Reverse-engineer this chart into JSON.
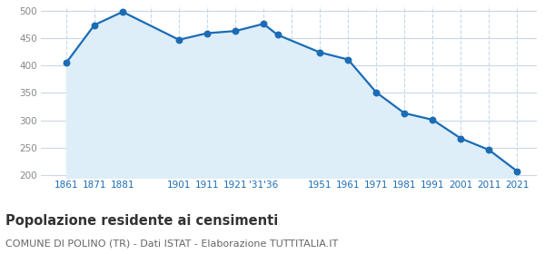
{
  "years": [
    1861,
    1871,
    1881,
    1901,
    1911,
    1921,
    1931,
    1936,
    1951,
    1961,
    1971,
    1981,
    1991,
    2001,
    2011,
    2021
  ],
  "population": [
    405,
    474,
    498,
    447,
    459,
    463,
    476,
    456,
    424,
    411,
    351,
    313,
    301,
    267,
    246,
    207
  ],
  "xtick_positions": [
    1861,
    1871,
    1881,
    1901,
    1911,
    1921,
    1931,
    1951,
    1961,
    1971,
    1981,
    1991,
    2001,
    2011,
    2021
  ],
  "xtick_labels": [
    "1861",
    "1871",
    "1881",
    "1901",
    "1911",
    "1921",
    "'31'36",
    "1951",
    "1961",
    "1971",
    "1981",
    "1991",
    "2001",
    "2011",
    "2021"
  ],
  "vgrid_positions": [
    1861,
    1871,
    1881,
    1891,
    1901,
    1911,
    1921,
    1931,
    1941,
    1951,
    1961,
    1971,
    1981,
    1991,
    2001,
    2011,
    2021
  ],
  "line_color": "#1b6cb5",
  "fill_color": "#ddeef8",
  "marker_color": "#1b6cb5",
  "background_color": "#ffffff",
  "grid_color": "#c8d8e8",
  "ylim": [
    195,
    508
  ],
  "yticks": [
    200,
    250,
    300,
    350,
    400,
    450,
    500
  ],
  "xlim_left": 1852,
  "xlim_right": 2028,
  "title": "Popolazione residente ai censimenti",
  "subtitle": "COMUNE DI POLINO (TR) - Dati ISTAT - Elaborazione TUTTITALIA.IT",
  "title_fontsize": 10.5,
  "subtitle_fontsize": 8,
  "tick_color": "#1b6cb5",
  "ytick_color": "#888888",
  "tick_fontsize": 7.5,
  "marker_size": 22
}
